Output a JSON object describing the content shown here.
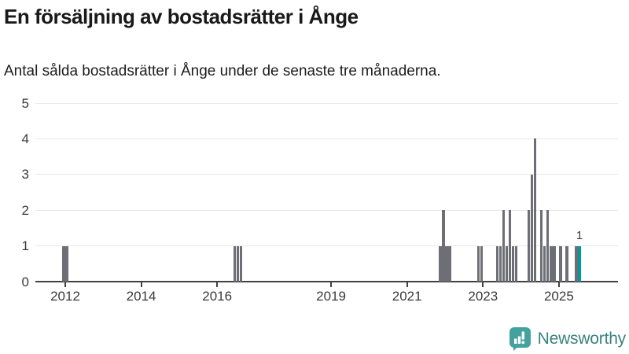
{
  "header": {
    "title": "En försäljning av bostadsrätter i Ånge",
    "subtitle": "Antal sålda bostadsrätter i Ånge under de senaste tre månaderna."
  },
  "footer": {
    "brand": "Newsworthy"
  },
  "colors": {
    "bar": "#6e6e76",
    "highlight": "#009b9b",
    "grid": "#e8e8e8",
    "axis": "#414141",
    "tick_label": "#3a3a3a",
    "logo_bubble": "#43a29d",
    "logo_text": "#3b827e"
  },
  "chart_data": {
    "type": "bar",
    "title": "En försäljning av bostadsrätter i Ånge",
    "subtitle": "Antal sålda bostadsrätter i Ånge under de senaste tre månaderna.",
    "xlabel": "",
    "ylabel": "",
    "ylim": [
      0,
      5
    ],
    "yticks": [
      0,
      1,
      2,
      3,
      4,
      5
    ],
    "xtick_years": [
      "2012",
      "2014",
      "2016",
      "2019",
      "2021",
      "2023",
      "2025"
    ],
    "x_range_years": [
      2011.2,
      2026.5
    ],
    "grid": "horizontal",
    "legend": "none",
    "bar_unit": "month",
    "series": [
      {
        "month": "2011-12",
        "value": 1
      },
      {
        "month": "2012-01",
        "value": 1
      },
      {
        "month": "2016-06",
        "value": 1
      },
      {
        "month": "2016-07",
        "value": 1
      },
      {
        "month": "2016-08",
        "value": 1
      },
      {
        "month": "2021-11",
        "value": 1
      },
      {
        "month": "2021-12",
        "value": 2
      },
      {
        "month": "2022-01",
        "value": 1
      },
      {
        "month": "2022-02",
        "value": 1
      },
      {
        "month": "2022-11",
        "value": 1
      },
      {
        "month": "2022-12",
        "value": 1
      },
      {
        "month": "2023-05",
        "value": 1
      },
      {
        "month": "2023-06",
        "value": 1
      },
      {
        "month": "2023-07",
        "value": 2
      },
      {
        "month": "2023-08",
        "value": 1
      },
      {
        "month": "2023-09",
        "value": 2
      },
      {
        "month": "2023-10",
        "value": 1
      },
      {
        "month": "2023-11",
        "value": 1
      },
      {
        "month": "2024-03",
        "value": 2
      },
      {
        "month": "2024-04",
        "value": 3
      },
      {
        "month": "2024-05",
        "value": 4
      },
      {
        "month": "2024-07",
        "value": 2
      },
      {
        "month": "2024-08",
        "value": 1
      },
      {
        "month": "2024-09",
        "value": 2
      },
      {
        "month": "2024-10",
        "value": 1
      },
      {
        "month": "2024-11",
        "value": 1
      },
      {
        "month": "2025-01",
        "value": 1
      },
      {
        "month": "2025-03",
        "value": 1
      },
      {
        "month": "2025-06",
        "value": 1
      },
      {
        "month": "2025-07",
        "value": 1,
        "highlight": true,
        "label": "1"
      }
    ]
  }
}
